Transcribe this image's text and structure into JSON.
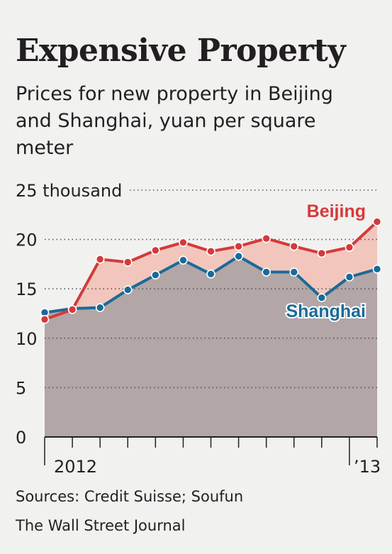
{
  "chart_data": {
    "type": "line",
    "title": "Expensive Property",
    "subtitle": "Prices for new property in Beijing and Shanghai, yuan per square meter",
    "y_unit_label": "thousand",
    "ylim": [
      0,
      25
    ],
    "yticks": [
      0,
      5,
      10,
      15,
      20,
      25
    ],
    "ytick_labels": [
      "0",
      "5",
      "10",
      "15",
      "20",
      "25 thousand"
    ],
    "x_labels": [
      "2012",
      "’13"
    ],
    "grid": true,
    "series": [
      {
        "name": "Beijing",
        "color": "#d43a3a",
        "fill": "#f2c6bd",
        "values": [
          11.9,
          12.9,
          18.0,
          17.7,
          18.9,
          19.7,
          18.8,
          19.3,
          20.1,
          19.3,
          18.6,
          19.2,
          21.8
        ]
      },
      {
        "name": "Shanghai",
        "color": "#1a6a99",
        "fill": "#b2a6a6",
        "values": [
          12.6,
          13.0,
          13.1,
          14.9,
          16.4,
          17.9,
          16.5,
          18.3,
          16.7,
          16.7,
          14.1,
          16.2,
          17.0
        ]
      }
    ]
  },
  "sources": "Sources: Credit Suisse; Soufun",
  "credit": "The Wall Street Journal",
  "colors": {
    "axis": "#231f20",
    "grid": "#555555",
    "background": "#f1f1f0"
  }
}
